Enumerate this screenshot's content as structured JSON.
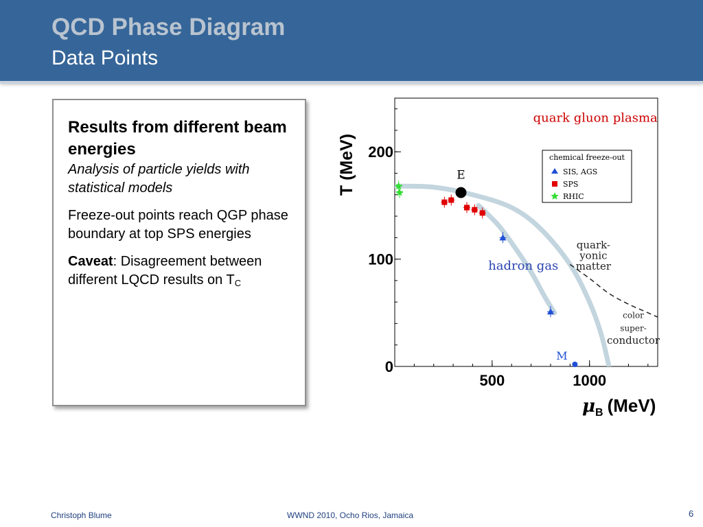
{
  "slide": {
    "title": "QCD Phase Diagram",
    "subtitle": "Data Points",
    "footer_left": "Christoph Blume",
    "footer_center": "WWND 2010, Ocho Rios, Jamaica",
    "page_number": "6"
  },
  "textbox": {
    "heading": "Results from different beam energies",
    "subheading": "Analysis of particle yields with statistical models",
    "para1": "Freeze-out points reach QGP phase boundary at top SPS energies",
    "caveat_label": "Caveat",
    "caveat_text": ": Disagreement between different LQCD results on T",
    "caveat_sub": "C"
  },
  "colors": {
    "header_bg": "#366699",
    "title": "#b9c4d0",
    "footer_text": "#1f3f7f",
    "sis_ags": "#1f4fd6",
    "sps": "#e00000",
    "rhic": "#33dd33",
    "region_labels": "#2a44b0",
    "plasma_label": "#cc0000",
    "phase_band": "#c3d5de"
  },
  "chart_data": {
    "type": "scatter",
    "xlabel": "μ",
    "xlabel_sub": "B",
    "xlabel_unit": "(MeV)",
    "ylabel": "T (MeV)",
    "xlim": [
      0,
      1350
    ],
    "ylim": [
      0,
      250
    ],
    "x_ticks": [
      500,
      1000
    ],
    "y_ticks": [
      0,
      100,
      200
    ],
    "legend": {
      "title": "chemical freeze-out",
      "position": "top-right",
      "entries": [
        "SIS, AGS",
        "SPS",
        "RHIC"
      ]
    },
    "series": [
      {
        "name": "RHIC",
        "marker": "star",
        "color": "#33dd33",
        "points": [
          [
            20,
            168
          ],
          [
            25,
            162
          ]
        ]
      },
      {
        "name": "SPS",
        "marker": "square",
        "color": "#e00000",
        "points": [
          [
            255,
            153
          ],
          [
            290,
            155
          ],
          [
            370,
            148
          ],
          [
            410,
            146
          ],
          [
            450,
            143
          ]
        ]
      },
      {
        "name": "SIS, AGS",
        "marker": "triangle",
        "color": "#1f4fd6",
        "points": [
          [
            555,
            120
          ],
          [
            800,
            51
          ]
        ]
      }
    ],
    "special_points": [
      {
        "label": "E",
        "x": 340,
        "y": 162,
        "color": "#000000"
      },
      {
        "label": "M",
        "x": 925,
        "y": 0,
        "color": "#1f4fd6"
      }
    ],
    "curves": [
      {
        "name": "hadron-qgp boundary",
        "style": "band",
        "points": [
          [
            0,
            168
          ],
          [
            200,
            167
          ],
          [
            400,
            160
          ],
          [
            600,
            148
          ],
          [
            750,
            128
          ],
          [
            900,
            95
          ],
          [
            1000,
            60
          ],
          [
            1060,
            30
          ],
          [
            1100,
            0
          ]
        ]
      },
      {
        "name": "hadron-quarkyonic boundary",
        "style": "band",
        "points": [
          [
            430,
            150
          ],
          [
            530,
            132
          ],
          [
            620,
            110
          ],
          [
            700,
            88
          ],
          [
            770,
            65
          ],
          [
            820,
            50
          ]
        ]
      },
      {
        "name": "color superconductor boundary",
        "style": "dashed",
        "points": [
          [
            900,
            95
          ],
          [
            1000,
            82
          ],
          [
            1100,
            68
          ],
          [
            1200,
            58
          ],
          [
            1300,
            50
          ],
          [
            1350,
            46
          ]
        ]
      }
    ],
    "region_labels": [
      {
        "text": "quark gluon plasma",
        "x": 1030,
        "y": 228,
        "color": "#cc0000"
      },
      {
        "text": "hadron gas",
        "x": 660,
        "y": 90,
        "color": "#2a44b0"
      },
      {
        "text": "quark-",
        "x": 1020,
        "y": 110,
        "color": "#222222"
      },
      {
        "text": "yonic",
        "x": 1020,
        "y": 100,
        "color": "#222222"
      },
      {
        "text": "matter",
        "x": 1020,
        "y": 90,
        "color": "#222222"
      },
      {
        "text": "color",
        "x": 1225,
        "y": 45,
        "color": "#222222"
      },
      {
        "text": "super-",
        "x": 1225,
        "y": 33,
        "color": "#222222"
      },
      {
        "text": "conductor",
        "x": 1225,
        "y": 21,
        "color": "#222222"
      }
    ]
  }
}
